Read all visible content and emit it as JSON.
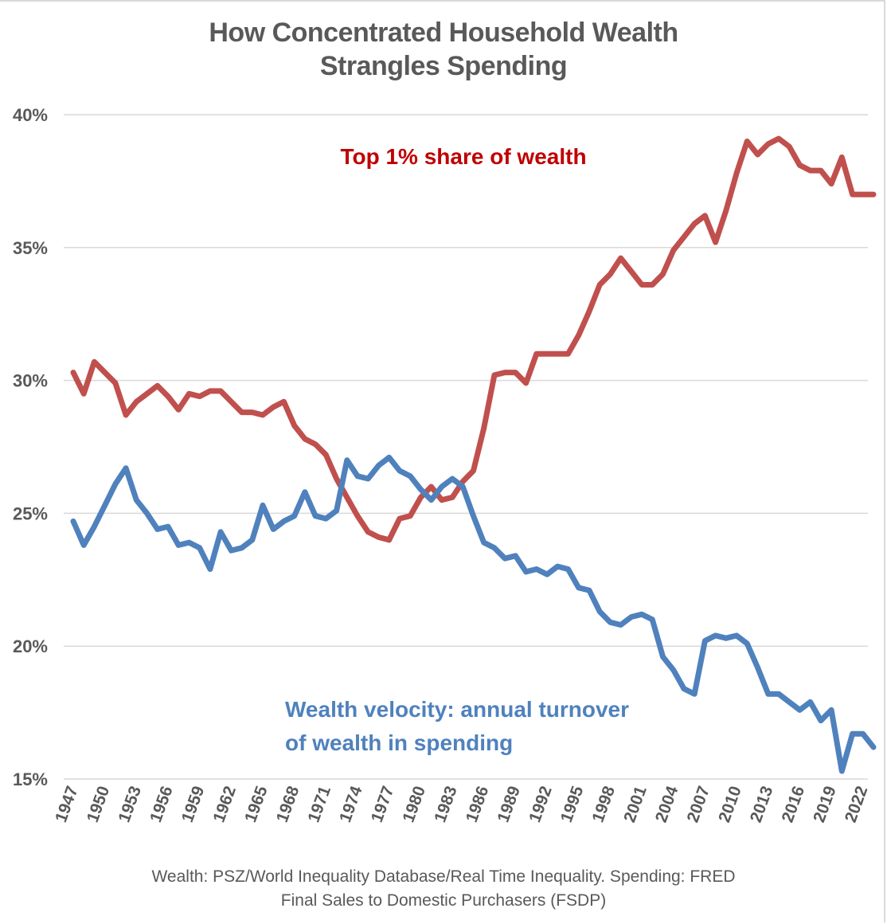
{
  "chart_data": {
    "type": "line",
    "title": "How Concentrated Household Wealth Strangles Spending",
    "title_lines": [
      "How Concentrated Household Wealth",
      "Strangles Spending"
    ],
    "xlabel": "",
    "ylabel": "",
    "ylim": [
      15,
      40
    ],
    "y_ticks": [
      {
        "value": 40,
        "label": "40%"
      },
      {
        "value": 35,
        "label": "35%"
      },
      {
        "value": 30,
        "label": "30%"
      },
      {
        "value": 25,
        "label": "25%"
      },
      {
        "value": 20,
        "label": "20%"
      },
      {
        "value": 15,
        "label": "15%"
      }
    ],
    "grid": true,
    "x_range": [
      1947,
      2023
    ],
    "x_tick_labels": [
      "1947",
      "1950",
      "1953",
      "1956",
      "1959",
      "1962",
      "1965",
      "1968",
      "1971",
      "1974",
      "1977",
      "1980",
      "1983",
      "1986",
      "1989",
      "1992",
      "1995",
      "1998",
      "2001",
      "2004",
      "2007",
      "2010",
      "2013",
      "2016",
      "2019",
      "2022"
    ],
    "x": [
      1947,
      1948,
      1949,
      1950,
      1951,
      1952,
      1953,
      1954,
      1955,
      1956,
      1957,
      1958,
      1959,
      1960,
      1961,
      1962,
      1963,
      1964,
      1965,
      1966,
      1967,
      1968,
      1969,
      1970,
      1971,
      1972,
      1973,
      1974,
      1975,
      1976,
      1977,
      1978,
      1979,
      1980,
      1981,
      1982,
      1983,
      1984,
      1985,
      1986,
      1987,
      1988,
      1989,
      1990,
      1991,
      1992,
      1993,
      1994,
      1995,
      1996,
      1997,
      1998,
      1999,
      2000,
      2001,
      2002,
      2003,
      2004,
      2005,
      2006,
      2007,
      2008,
      2009,
      2010,
      2011,
      2012,
      2013,
      2014,
      2015,
      2016,
      2017,
      2018,
      2019,
      2020,
      2021,
      2022,
      2023
    ],
    "series": [
      {
        "name": "Top 1% share of wealth",
        "color": "#c0504d",
        "values": [
          30.3,
          29.5,
          30.7,
          30.3,
          29.9,
          28.7,
          29.2,
          29.5,
          29.8,
          29.4,
          28.9,
          29.5,
          29.4,
          29.6,
          29.6,
          29.2,
          28.8,
          28.8,
          28.7,
          29.0,
          29.2,
          28.3,
          27.8,
          27.6,
          27.2,
          26.3,
          25.6,
          24.9,
          24.3,
          24.1,
          24.0,
          24.8,
          24.9,
          25.6,
          26.0,
          25.5,
          25.6,
          26.2,
          26.6,
          28.2,
          30.2,
          30.3,
          30.3,
          29.9,
          31.0,
          31.0,
          31.0,
          31.0,
          31.7,
          32.6,
          33.6,
          34.0,
          34.6,
          34.1,
          33.6,
          33.6,
          34.0,
          34.9,
          35.4,
          35.9,
          36.2,
          35.2,
          36.4,
          37.8,
          39.0,
          38.5,
          38.9,
          39.1,
          38.8,
          38.1,
          37.9,
          37.9,
          37.4,
          38.4,
          37.0,
          37.0,
          37.0
        ]
      },
      {
        "name": "Wealth velocity: annual turnover of wealth in spending",
        "color": "#4f81bd",
        "values": [
          24.7,
          23.8,
          24.5,
          25.3,
          26.1,
          26.7,
          25.5,
          25.0,
          24.4,
          24.5,
          23.8,
          23.9,
          23.7,
          22.9,
          24.3,
          23.6,
          23.7,
          24.0,
          25.3,
          24.4,
          24.7,
          24.9,
          25.8,
          24.9,
          24.8,
          25.1,
          27.0,
          26.4,
          26.3,
          26.8,
          27.1,
          26.6,
          26.4,
          25.9,
          25.5,
          26.0,
          26.3,
          26.0,
          24.9,
          23.9,
          23.7,
          23.3,
          23.4,
          22.8,
          22.9,
          22.7,
          23.0,
          22.9,
          22.2,
          22.1,
          21.3,
          20.9,
          20.8,
          21.1,
          21.2,
          21.0,
          19.6,
          19.1,
          18.4,
          18.2,
          20.2,
          20.4,
          20.3,
          20.4,
          20.1,
          19.2,
          18.2,
          18.2,
          17.9,
          17.6,
          17.9,
          17.2,
          17.6,
          15.3,
          16.7,
          16.7,
          16.2
        ]
      }
    ],
    "annotations": [
      {
        "text": "Top 1% share of wealth",
        "color": "#c00000",
        "series": 0
      },
      {
        "text_lines": [
          "Wealth velocity: annual turnover",
          "of wealth in spending"
        ],
        "color": "#4f81bd",
        "series": 1
      }
    ],
    "legend": "none",
    "source_lines": [
      "Wealth: PSZ/World Inequality Database/Real Time Inequality. Spending: FRED",
      "Final Sales to Domestic Purchasers (FSDP)"
    ]
  }
}
